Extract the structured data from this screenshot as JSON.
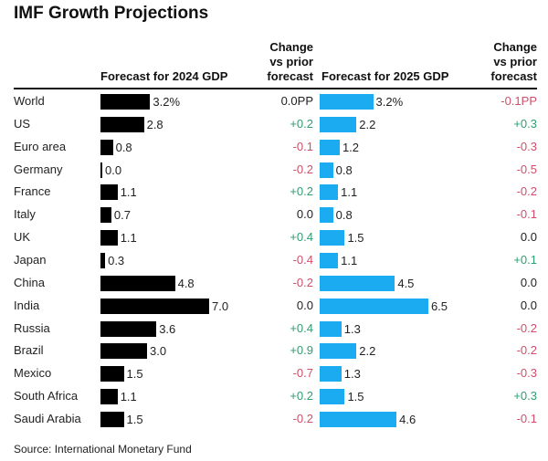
{
  "chart_data": {
    "type": "bar",
    "title": "IMF Growth Projections",
    "headers": {
      "forecast_2024": "Forecast for 2024 GDP",
      "change_2024": [
        "Change",
        "vs prior",
        "forecast"
      ],
      "forecast_2025": "Forecast for 2025 GDP",
      "change_2025": [
        "Change",
        "vs prior",
        "forecast"
      ]
    },
    "categories": [
      "World",
      "US",
      "Euro area",
      "Germany",
      "France",
      "Italy",
      "UK",
      "Japan",
      "China",
      "India",
      "Russia",
      "Brazil",
      "Mexico",
      "South Africa",
      "Saudi Arabia"
    ],
    "series": [
      {
        "name": "Forecast for 2024 GDP",
        "values": [
          3.2,
          2.8,
          0.8,
          0.0,
          1.1,
          0.7,
          1.1,
          0.3,
          4.8,
          7.0,
          3.6,
          3.0,
          1.5,
          1.1,
          1.5
        ],
        "labels": [
          "3.2%",
          "2.8",
          "0.8",
          "0.0",
          "1.1",
          "0.7",
          "1.1",
          "0.3",
          "4.8",
          "7.0",
          "3.6",
          "3.0",
          "1.5",
          "1.1",
          "1.5"
        ],
        "change": [
          "0.0PP",
          "+0.2",
          "-0.1",
          "-0.2",
          "+0.2",
          "0.0",
          "+0.4",
          "-0.4",
          "-0.2",
          "0.0",
          "+0.4",
          "+0.9",
          "-0.7",
          "+0.2",
          "-0.2"
        ]
      },
      {
        "name": "Forecast for 2025 GDP",
        "values": [
          3.2,
          2.2,
          1.2,
          0.8,
          1.1,
          0.8,
          1.5,
          1.1,
          4.5,
          6.5,
          1.3,
          2.2,
          1.3,
          1.5,
          4.6
        ],
        "labels": [
          "3.2%",
          "2.2",
          "1.2",
          "0.8",
          "1.1",
          "0.8",
          "1.5",
          "1.1",
          "4.5",
          "6.5",
          "1.3",
          "2.2",
          "1.3",
          "1.5",
          "4.6"
        ],
        "change": [
          "-0.1PP",
          "+0.3",
          "-0.3",
          "-0.5",
          "-0.2",
          "-0.1",
          "0.0",
          "+0.1",
          "0.0",
          "0.0",
          "-0.2",
          "-0.2",
          "-0.3",
          "+0.3",
          "-0.1"
        ]
      }
    ],
    "source": "Source: International Monetary Fund"
  },
  "colors": {
    "bar_2024": "#000000",
    "bar_2025": "#1aabf0",
    "positive": "#2e9e72",
    "negative": "#cf4f6b",
    "neutral": "#222222"
  }
}
